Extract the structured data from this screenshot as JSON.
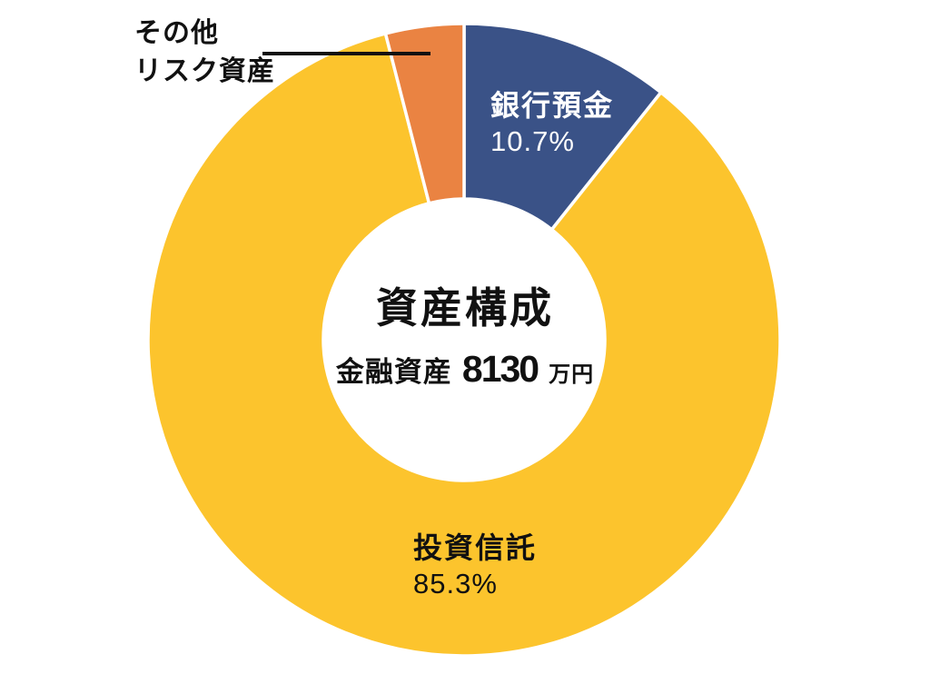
{
  "chart_data": {
    "type": "pie",
    "subtype": "donut",
    "title": "資産構成",
    "start_angle_deg": 0,
    "direction": "clockwise",
    "legend": "none",
    "grid": false,
    "background": "#ffffff",
    "gap_stroke_color": "#ffffff",
    "leader_line_color": "#111111",
    "center_label": {
      "title": "資産構成",
      "subtitle_prefix": "金融資産",
      "subtitle_value": "8130",
      "subtitle_unit": "万円"
    },
    "slices": [
      {
        "name": "bank-deposit",
        "label": "銀行預金",
        "pct": 10.7,
        "pct_label": "10.7%",
        "color": "#3A5287",
        "text_color": "#FFFFFF",
        "label_placement": "inside"
      },
      {
        "name": "investment-trust",
        "label": "投資信託",
        "pct": 85.3,
        "pct_label": "85.3%",
        "color": "#FCC42D",
        "text_color": "#111111",
        "label_placement": "inside"
      },
      {
        "name": "other-risk-assets",
        "label": "その他リスク資産",
        "label_lines": [
          "その他",
          "リスク資産"
        ],
        "pct": 4.0,
        "pct_label": "",
        "color": "#EA8342",
        "text_color": "#111111",
        "label_placement": "outside-with-leader-line"
      }
    ]
  }
}
